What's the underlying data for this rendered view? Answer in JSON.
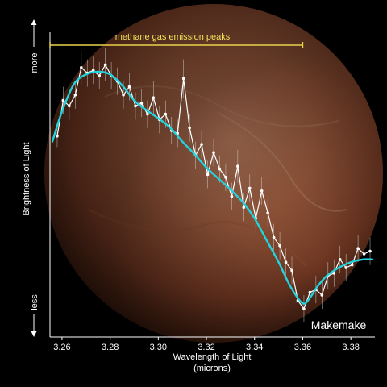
{
  "chart_data": {
    "type": "line",
    "title": "",
    "xlabel": "Wavelength of Light",
    "xlabel_units": "(microns)",
    "ylabel": "Brightness of Light",
    "y_axis_high_label": "more",
    "y_axis_low_label": "less",
    "xlim": [
      3.255,
      3.39
    ],
    "ylim": [
      0,
      1
    ],
    "x_ticks": [
      "3.26",
      "3.28",
      "3.30",
      "3.32",
      "3.34",
      "3.36",
      "3.38"
    ],
    "grid": false,
    "annotation": {
      "text": "methane gas emission peaks",
      "x_start": 3.255,
      "x_end": 3.36,
      "color": "#e8d24a"
    },
    "object_label": "Makemake",
    "series": [
      {
        "kind": "measured",
        "color": "#ffffff",
        "x": [
          3.258,
          3.2605,
          3.263,
          3.2655,
          3.268,
          3.2705,
          3.273,
          3.2755,
          3.278,
          3.2805,
          3.283,
          3.2855,
          3.288,
          3.2905,
          3.293,
          3.2955,
          3.298,
          3.3005,
          3.303,
          3.3055,
          3.308,
          3.3105,
          3.313,
          3.3155,
          3.318,
          3.3205,
          3.323,
          3.3255,
          3.328,
          3.3305,
          3.333,
          3.3355,
          3.338,
          3.3405,
          3.343,
          3.3455,
          3.348,
          3.3505,
          3.353,
          3.3555,
          3.358,
          3.3605,
          3.363,
          3.3655,
          3.368,
          3.3705,
          3.373,
          3.3755,
          3.378,
          3.3805,
          3.383,
          3.3855,
          3.388
        ],
        "y": [
          0.68,
          0.81,
          0.79,
          0.83,
          0.93,
          0.91,
          0.92,
          0.9,
          0.94,
          0.9,
          0.88,
          0.83,
          0.86,
          0.79,
          0.8,
          0.76,
          0.82,
          0.74,
          0.76,
          0.7,
          0.69,
          0.89,
          0.71,
          0.61,
          0.65,
          0.54,
          0.62,
          0.56,
          0.53,
          0.46,
          0.57,
          0.42,
          0.49,
          0.38,
          0.48,
          0.4,
          0.31,
          0.28,
          0.22,
          0.19,
          0.08,
          0.05,
          0.11,
          0.12,
          0.1,
          0.17,
          0.18,
          0.23,
          0.2,
          0.21,
          0.27,
          0.25,
          0.26
        ],
        "error": [
          0.04,
          0.05,
          0.05,
          0.05,
          0.06,
          0.05,
          0.05,
          0.05,
          0.06,
          0.05,
          0.05,
          0.05,
          0.05,
          0.05,
          0.05,
          0.05,
          0.06,
          0.05,
          0.05,
          0.05,
          0.05,
          0.07,
          0.05,
          0.05,
          0.05,
          0.05,
          0.05,
          0.05,
          0.05,
          0.05,
          0.06,
          0.05,
          0.05,
          0.05,
          0.05,
          0.05,
          0.05,
          0.05,
          0.05,
          0.05,
          0.05,
          0.05,
          0.05,
          0.05,
          0.05,
          0.05,
          0.05,
          0.05,
          0.05,
          0.05,
          0.05,
          0.05,
          0.05
        ]
      },
      {
        "kind": "model",
        "color": "#22d3dd",
        "x": [
          3.256,
          3.26,
          3.265,
          3.27,
          3.275,
          3.28,
          3.285,
          3.29,
          3.295,
          3.3,
          3.305,
          3.31,
          3.315,
          3.32,
          3.325,
          3.33,
          3.335,
          3.34,
          3.345,
          3.35,
          3.355,
          3.36,
          3.363,
          3.366,
          3.37,
          3.375,
          3.38,
          3.385,
          3.389
        ],
        "y": [
          0.66,
          0.77,
          0.87,
          0.905,
          0.915,
          0.905,
          0.865,
          0.81,
          0.775,
          0.745,
          0.71,
          0.66,
          0.615,
          0.565,
          0.525,
          0.485,
          0.44,
          0.38,
          0.3,
          0.22,
          0.13,
          0.07,
          0.09,
          0.13,
          0.17,
          0.2,
          0.22,
          0.23,
          0.23
        ]
      }
    ]
  }
}
